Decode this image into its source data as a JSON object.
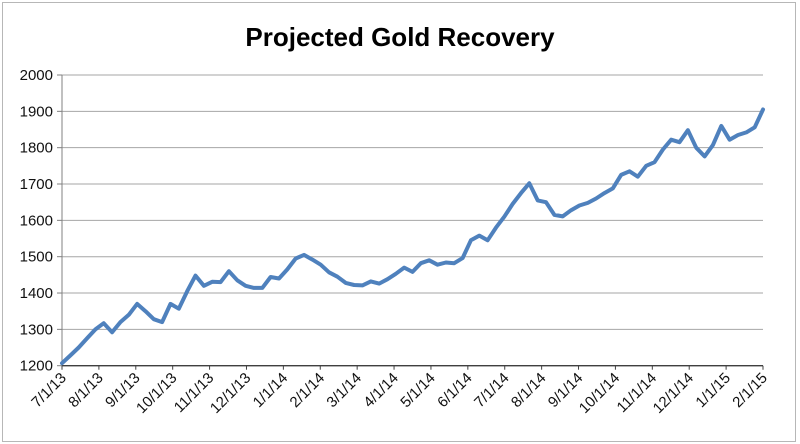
{
  "chart_data": {
    "type": "line",
    "title": "Projected Gold Recovery",
    "x_labels": [
      "7/1/13",
      "8/1/13",
      "9/1/13",
      "10/1/13",
      "11/1/13",
      "12/1/13",
      "1/1/14",
      "2/1/14",
      "3/1/14",
      "4/1/14",
      "5/1/14",
      "6/1/14",
      "7/1/14",
      "8/1/14",
      "9/1/14",
      "10/1/14",
      "11/1/14",
      "12/1/14",
      "1/1/15",
      "2/1/15"
    ],
    "y_ticks": [
      2000,
      1900,
      1800,
      1700,
      1600,
      1500,
      1400,
      1300,
      1200
    ],
    "ylim": [
      1200,
      2000
    ],
    "grid": "horizontal",
    "legend": "none",
    "series": [
      {
        "name": "Projected Gold Recovery",
        "interval": "weekly",
        "values": [
          1207,
          1228,
          1250,
          1275,
          1300,
          1317,
          1292,
          1320,
          1340,
          1370,
          1350,
          1328,
          1320,
          1370,
          1357,
          1405,
          1448,
          1420,
          1431,
          1430,
          1460,
          1435,
          1420,
          1414,
          1414,
          1444,
          1440,
          1465,
          1495,
          1505,
          1492,
          1478,
          1457,
          1445,
          1428,
          1422,
          1421,
          1432,
          1426,
          1438,
          1453,
          1470,
          1458,
          1482,
          1490,
          1478,
          1484,
          1482,
          1496,
          1545,
          1558,
          1545,
          1580,
          1610,
          1645,
          1675,
          1702,
          1655,
          1650,
          1615,
          1611,
          1628,
          1641,
          1648,
          1660,
          1675,
          1688,
          1725,
          1735,
          1720,
          1750,
          1760,
          1795,
          1822,
          1815,
          1848,
          1800,
          1776,
          1807,
          1860,
          1822,
          1835,
          1842,
          1856,
          1905
        ]
      }
    ],
    "colors": {
      "line": "#4F81BD",
      "gridline": "#a6a6a6",
      "x_axis": "#404040",
      "y_axis": "#808080",
      "text": "#000000",
      "frame_border": "#b7b7b7"
    }
  }
}
